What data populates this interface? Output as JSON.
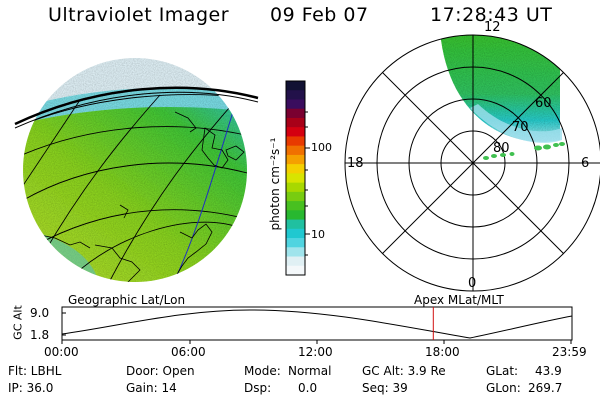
{
  "header": {
    "instrument": "Ultraviolet Imager",
    "date": "09 Feb 07",
    "time": "17:28:43 UT"
  },
  "colorbar": {
    "unit_label": "photon cm⁻²s⁻¹",
    "ticks": [
      "100",
      "10"
    ],
    "colors": [
      "#111133",
      "#22114a",
      "#3a0d5e",
      "#7a0030",
      "#a80018",
      "#d40010",
      "#e83a00",
      "#f07000",
      "#f5a000",
      "#f4d000",
      "#d8e400",
      "#a8d800",
      "#78cc10",
      "#48c020",
      "#28b830",
      "#20c0a0",
      "#20c8d0",
      "#50d4e0",
      "#a0e4ec",
      "#e0f0f4",
      "#f4f8fa"
    ]
  },
  "left_panel": {
    "caption": "Geographic Lat/Lon"
  },
  "right_panel": {
    "caption": "Apex MLat/MLT",
    "mlt_labels": {
      "top": "12",
      "left": "18",
      "right": "6",
      "bottom": "0"
    },
    "lat_labels": [
      "60",
      "70",
      "80"
    ]
  },
  "timeline": {
    "ylabel": "GC Alt",
    "ymax": "9.0",
    "ymin": "1.8",
    "ticks": [
      "00:00",
      "06:00",
      "12:00",
      "18:00",
      "23:59"
    ],
    "current_time_fraction": 0.728
  },
  "status": {
    "flt": "Flt: LBHL",
    "ip": "IP: 36.0",
    "door": "Door: Open",
    "gain": "Gain: 14",
    "mode_label": "Mode:",
    "mode_value": "Normal",
    "dsp_label": "Dsp:",
    "dsp_value": "0.0",
    "gcalt": "GC Alt: 3.9 Re",
    "seq": "Seq: 39",
    "glat_label": "GLat:",
    "glat_value": "43.9",
    "glon_label": "GLon:",
    "glon_value": "269.7"
  }
}
